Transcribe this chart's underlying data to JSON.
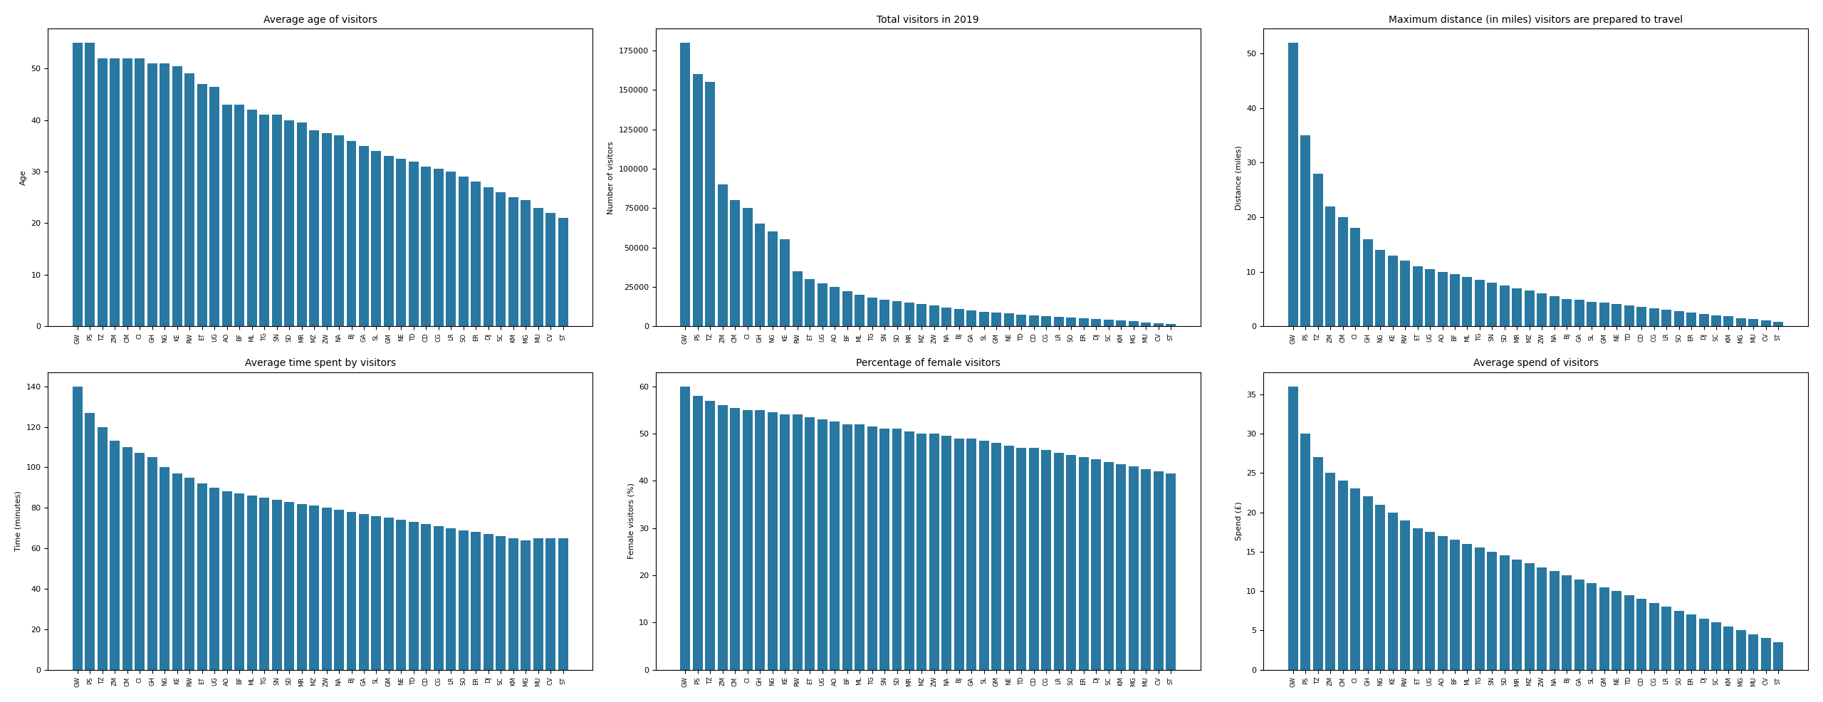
{
  "avg_age": {
    "title": "Average age of visitors",
    "ylabel": "Age",
    "categories": [
      "GW",
      "PS",
      "TZ",
      "ZM",
      "CM",
      "CI",
      "GH",
      "NG",
      "KE",
      "RW",
      "ET",
      "UG",
      "AO",
      "BF",
      "ML",
      "TG",
      "SN",
      "SD",
      "MR",
      "MZ",
      "ZW",
      "NA",
      "BJ",
      "GA",
      "SL",
      "GM",
      "NE",
      "TD",
      "CD",
      "CG",
      "LR",
      "SO",
      "ER",
      "DJ",
      "SC",
      "KM",
      "MG",
      "MU",
      "CV",
      "ST"
    ],
    "values": [
      55,
      55,
      52,
      52,
      52,
      52,
      51,
      51,
      50.5,
      49,
      47,
      46.5,
      43,
      43,
      42,
      41,
      41,
      40,
      39.5,
      38,
      37.5,
      37,
      36,
      35,
      34,
      33,
      32.5,
      32,
      31,
      30.5,
      30,
      29,
      28,
      27,
      26,
      25,
      24.5,
      23,
      22,
      21
    ]
  },
  "total_visitors": {
    "title": "Total visitors in 2019",
    "ylabel": "Number of visitors",
    "categories": [
      "GW",
      "PS",
      "TZ",
      "ZM",
      "CM",
      "CI",
      "GH",
      "NG",
      "KE",
      "RW",
      "ET",
      "UG",
      "AO",
      "BF",
      "ML",
      "TG",
      "SN",
      "SD",
      "MR",
      "MZ",
      "ZW",
      "NA",
      "BJ",
      "GA",
      "SL",
      "GM",
      "NE",
      "TD",
      "CD",
      "CG",
      "LR",
      "SO",
      "ER",
      "DJ",
      "SC",
      "KM",
      "MG",
      "MU",
      "CV",
      "ST"
    ],
    "values": [
      180000,
      160000,
      155000,
      90000,
      80000,
      75000,
      65000,
      60000,
      55000,
      35000,
      30000,
      27000,
      25000,
      22000,
      20000,
      18000,
      17000,
      16000,
      15000,
      14000,
      13000,
      12000,
      11000,
      10000,
      9000,
      8500,
      8000,
      7500,
      7000,
      6500,
      6000,
      5500,
      5000,
      4500,
      4000,
      3500,
      3000,
      2500,
      2000,
      1500
    ]
  },
  "max_distance": {
    "title": "Maximum distance (in miles) visitors are prepared to travel",
    "ylabel": "Distance (miles)",
    "categories": [
      "GW",
      "PS",
      "TZ",
      "ZM",
      "CM",
      "CI",
      "GH",
      "NG",
      "KE",
      "RW",
      "ET",
      "UG",
      "AO",
      "BF",
      "ML",
      "TG",
      "SN",
      "SD",
      "MR",
      "MZ",
      "ZW",
      "NA",
      "BJ",
      "GA",
      "SL",
      "GM",
      "NE",
      "TD",
      "CD",
      "CG",
      "LR",
      "SO",
      "ER",
      "DJ",
      "SC",
      "KM",
      "MG",
      "MU",
      "CV",
      "ST"
    ],
    "values": [
      52,
      35,
      28,
      22,
      20,
      18,
      16,
      14,
      13,
      12,
      11,
      10.5,
      10,
      9.5,
      9,
      8.5,
      8,
      7.5,
      7,
      6.5,
      6,
      5.5,
      5,
      4.8,
      4.5,
      4.3,
      4,
      3.8,
      3.5,
      3.3,
      3,
      2.8,
      2.5,
      2.3,
      2,
      1.8,
      1.5,
      1.3,
      1.0,
      0.8
    ]
  },
  "avg_time": {
    "title": "Average time spent by visitors",
    "ylabel": "Time (minutes)",
    "categories": [
      "GW",
      "PS",
      "TZ",
      "ZM",
      "CM",
      "CI",
      "GH",
      "NG",
      "KE",
      "RW",
      "ET",
      "UG",
      "AO",
      "BF",
      "ML",
      "TG",
      "SN",
      "SD",
      "MR",
      "MZ",
      "ZW",
      "NA",
      "BJ",
      "GA",
      "SL",
      "GM",
      "NE",
      "TD",
      "CD",
      "CG",
      "LR",
      "SO",
      "ER",
      "DJ",
      "SC",
      "KM",
      "MG",
      "MU",
      "CV",
      "ST"
    ],
    "values": [
      140,
      127,
      120,
      113,
      110,
      107,
      105,
      100,
      97,
      95,
      92,
      90,
      88,
      87,
      86,
      85,
      84,
      83,
      82,
      81,
      80,
      79,
      78,
      77,
      76,
      75,
      74,
      73,
      72,
      71,
      70,
      69,
      68,
      67,
      66,
      65,
      64,
      65,
      65,
      65
    ]
  },
  "pct_female": {
    "title": "Percentage of female visitors",
    "ylabel": "Female visitors (%)",
    "categories": [
      "GW",
      "PS",
      "TZ",
      "ZM",
      "CM",
      "CI",
      "GH",
      "NG",
      "KE",
      "RW",
      "ET",
      "UG",
      "AO",
      "BF",
      "ML",
      "TG",
      "SN",
      "SD",
      "MR",
      "MZ",
      "ZW",
      "NA",
      "BJ",
      "GA",
      "SL",
      "GM",
      "NE",
      "TD",
      "CD",
      "CG",
      "LR",
      "SO",
      "ER",
      "DJ",
      "SC",
      "KM",
      "MG",
      "MU",
      "CV",
      "ST"
    ],
    "values": [
      60,
      58,
      57,
      56,
      55.5,
      55,
      55,
      54.5,
      54,
      54,
      53.5,
      53,
      52.5,
      52,
      52,
      51.5,
      51,
      51,
      50.5,
      50,
      50,
      49.5,
      49,
      49,
      48.5,
      48,
      47.5,
      47,
      47,
      46.5,
      46,
      45.5,
      45,
      44.5,
      44,
      43.5,
      43,
      42.5,
      42,
      41.5
    ]
  },
  "avg_spend": {
    "title": "Average spend of visitors",
    "ylabel": "Spend (£)",
    "categories": [
      "GW",
      "PS",
      "TZ",
      "ZM",
      "CM",
      "CI",
      "GH",
      "NG",
      "KE",
      "RW",
      "ET",
      "UG",
      "AO",
      "BF",
      "ML",
      "TG",
      "SN",
      "SD",
      "MR",
      "MZ",
      "ZW",
      "NA",
      "BJ",
      "GA",
      "SL",
      "GM",
      "NE",
      "TD",
      "CD",
      "CG",
      "LR",
      "SO",
      "ER",
      "DJ",
      "SC",
      "KM",
      "MG",
      "MU",
      "CV",
      "ST"
    ],
    "values": [
      36,
      30,
      27,
      25,
      24,
      23,
      22,
      21,
      20,
      19,
      18,
      17.5,
      17,
      16.5,
      16,
      15.5,
      15,
      14.5,
      14,
      13.5,
      13,
      12.5,
      12,
      11.5,
      11,
      10.5,
      10,
      9.5,
      9,
      8.5,
      8,
      7.5,
      7,
      6.5,
      6,
      5.5,
      5,
      4.5,
      4,
      3.5
    ]
  },
  "bar_color": "#2878a2"
}
